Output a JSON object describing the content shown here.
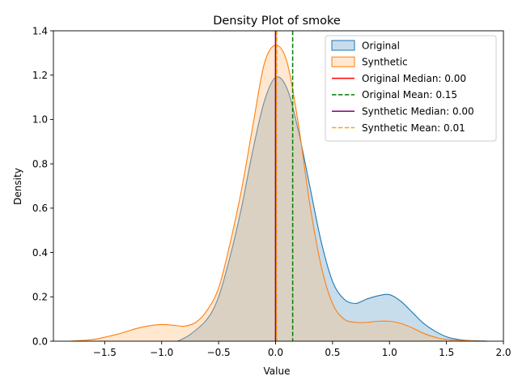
{
  "chart_data": {
    "type": "area",
    "title": "Density Plot of smoke",
    "xlabel": "Value",
    "ylabel": "Density",
    "xlim": [
      -1.95,
      2.0
    ],
    "ylim": [
      0,
      1.4
    ],
    "xticks": [
      -1.5,
      -1.0,
      -0.5,
      0.0,
      0.5,
      1.0,
      1.5,
      2.0
    ],
    "xtick_labels": [
      "−1.5",
      "−1.0",
      "−0.5",
      "0.0",
      "0.5",
      "1.0",
      "1.5",
      "2.0"
    ],
    "yticks": [
      0.0,
      0.2,
      0.4,
      0.6,
      0.8,
      1.0,
      1.2,
      1.4
    ],
    "ytick_labels": [
      "0.0",
      "0.2",
      "0.4",
      "0.6",
      "0.8",
      "1.0",
      "1.2",
      "1.4"
    ],
    "grid": false,
    "legend_position": "top-right",
    "series": [
      {
        "name": "Original",
        "color": "#1f77b4",
        "fill": "#1f77b4",
        "x": [
          -0.86,
          -0.75,
          -0.6,
          -0.5,
          -0.4,
          -0.3,
          -0.2,
          -0.1,
          0.0,
          0.1,
          0.2,
          0.3,
          0.4,
          0.5,
          0.6,
          0.7,
          0.8,
          0.9,
          1.0,
          1.1,
          1.2,
          1.3,
          1.4,
          1.5,
          1.6,
          1.7,
          1.86
        ],
        "y": [
          0.0,
          0.03,
          0.1,
          0.2,
          0.38,
          0.6,
          0.86,
          1.08,
          1.19,
          1.14,
          0.95,
          0.7,
          0.45,
          0.27,
          0.19,
          0.17,
          0.19,
          0.205,
          0.21,
          0.18,
          0.13,
          0.08,
          0.045,
          0.02,
          0.008,
          0.003,
          0.0
        ]
      },
      {
        "name": "Synthetic",
        "color": "#ff7f0e",
        "fill": "#ffbb78",
        "x": [
          -1.8,
          -1.6,
          -1.4,
          -1.3,
          -1.2,
          -1.1,
          -1.0,
          -0.9,
          -0.8,
          -0.7,
          -0.6,
          -0.5,
          -0.4,
          -0.3,
          -0.2,
          -0.1,
          0.0,
          0.1,
          0.2,
          0.3,
          0.4,
          0.5,
          0.6,
          0.7,
          0.8,
          0.9,
          1.0,
          1.1,
          1.2,
          1.3,
          1.4,
          1.5,
          1.8
        ],
        "y": [
          0.0,
          0.008,
          0.03,
          0.045,
          0.06,
          0.07,
          0.075,
          0.072,
          0.068,
          0.085,
          0.14,
          0.24,
          0.44,
          0.68,
          0.97,
          1.25,
          1.335,
          1.26,
          0.98,
          0.62,
          0.34,
          0.17,
          0.1,
          0.085,
          0.085,
          0.09,
          0.09,
          0.08,
          0.06,
          0.035,
          0.018,
          0.008,
          0.0
        ]
      }
    ],
    "reference_lines": [
      {
        "label": "Original Median: 0.00",
        "x": 0.0,
        "color": "#ff0000",
        "dash": "solid"
      },
      {
        "label": "Original Mean: 0.15",
        "x": 0.15,
        "color": "#008000",
        "dash": "dashed"
      },
      {
        "label": "Synthetic Median: 0.00",
        "x": 0.0,
        "color": "#800080",
        "dash": "solid"
      },
      {
        "label": "Synthetic Mean: 0.01",
        "x": 0.01,
        "color": "#ffa500",
        "dash": "dashed"
      }
    ]
  }
}
